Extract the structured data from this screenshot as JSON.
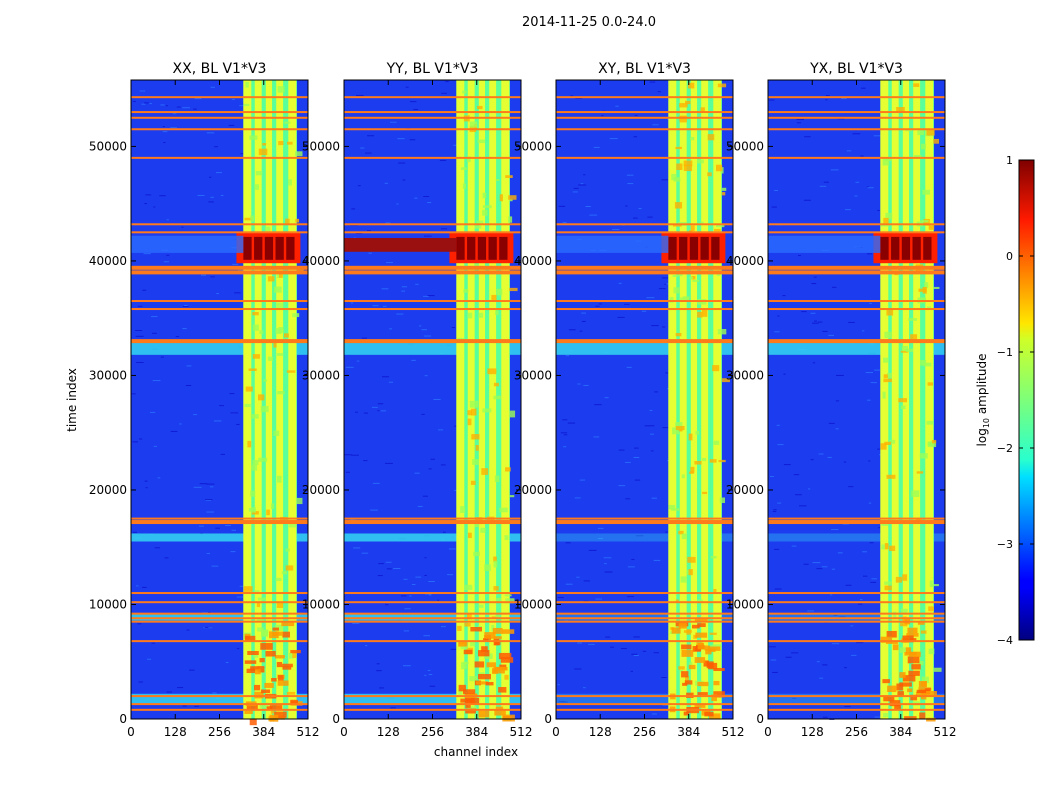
{
  "figure": {
    "suptitle": "2014-11-25 0.0-24.0"
  },
  "chart_data": {
    "type": "heatmap",
    "ylabel": "time index",
    "xlabel": "channel index",
    "xlim": [
      0,
      512
    ],
    "ylim": [
      0,
      55800
    ],
    "x_ticks": [
      0,
      128,
      256,
      384,
      512
    ],
    "y_ticks": [
      0,
      10000,
      20000,
      30000,
      40000,
      50000
    ],
    "panels": [
      {
        "title": "XX, BL V1*V3",
        "id": "xx"
      },
      {
        "title": "YY, BL V1*V3",
        "id": "yy"
      },
      {
        "title": "XY, BL V1*V3",
        "id": "xy"
      },
      {
        "title": "YX, BL V1*V3",
        "id": "yx"
      }
    ],
    "colorbar": {
      "label_prefix": "log",
      "label_sub": "10",
      "label_suffix": " amplitude",
      "range": [
        -4,
        1
      ],
      "ticks": [
        "1",
        "0",
        "−1",
        "−2",
        "−3",
        "−4"
      ],
      "colormap": "jet"
    },
    "features": {
      "bright_channel_band": [
        325,
        480
      ],
      "bright_subbands": [
        [
          325,
          348
        ],
        [
          358,
          378
        ],
        [
          390,
          408
        ],
        [
          420,
          440
        ],
        [
          455,
          478
        ]
      ],
      "saturated_rfi_time_range": [
        39800,
        42500
      ],
      "orange_flag_rows": [
        800,
        1300,
        2000,
        6800,
        8500,
        8800,
        9200,
        10200,
        11000,
        17200,
        17500,
        33000,
        35800,
        36500,
        39000,
        39400,
        42500,
        43200,
        49000,
        51500,
        52500,
        53000,
        54300
      ],
      "broadband_cyan_rows": [
        [
          1300,
          2200
        ],
        [
          8600,
          9200
        ],
        [
          15500,
          16200
        ],
        [
          31800,
          33000
        ]
      ]
    }
  }
}
